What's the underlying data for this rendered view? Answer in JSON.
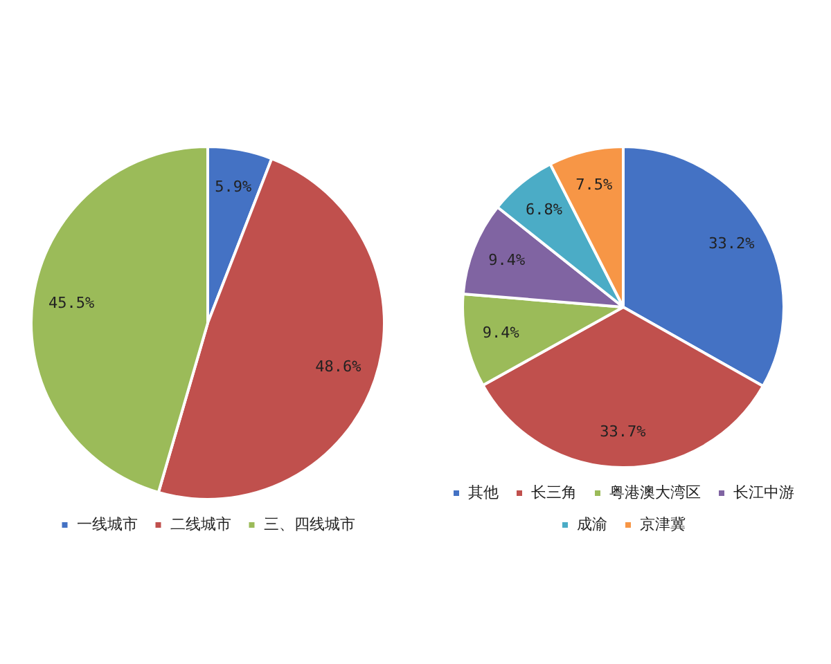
{
  "chart_data": [
    {
      "type": "pie",
      "categories": [
        "一线城市",
        "二线城市",
        "三、四线城市"
      ],
      "values": [
        5.9,
        48.6,
        45.5
      ],
      "colors": [
        "#4472c4",
        "#c0504d",
        "#9bbb59"
      ],
      "value_labels": [
        "5.9%",
        "48.6%",
        "45.5%"
      ],
      "legend": "bottom"
    },
    {
      "type": "pie",
      "categories": [
        "其他",
        "长三角",
        "粤港澳大湾区",
        "长江中游",
        "成渝",
        "京津冀"
      ],
      "values": [
        33.2,
        33.7,
        9.4,
        9.4,
        6.8,
        7.5
      ],
      "colors": [
        "#4472c4",
        "#c0504d",
        "#9bbb59",
        "#8064a2",
        "#4bacc6",
        "#f79646"
      ],
      "value_labels": [
        "33.2%",
        "33.7%",
        "9.4%",
        "9.4%",
        "6.8%",
        "7.5%"
      ],
      "legend": "bottom"
    }
  ]
}
